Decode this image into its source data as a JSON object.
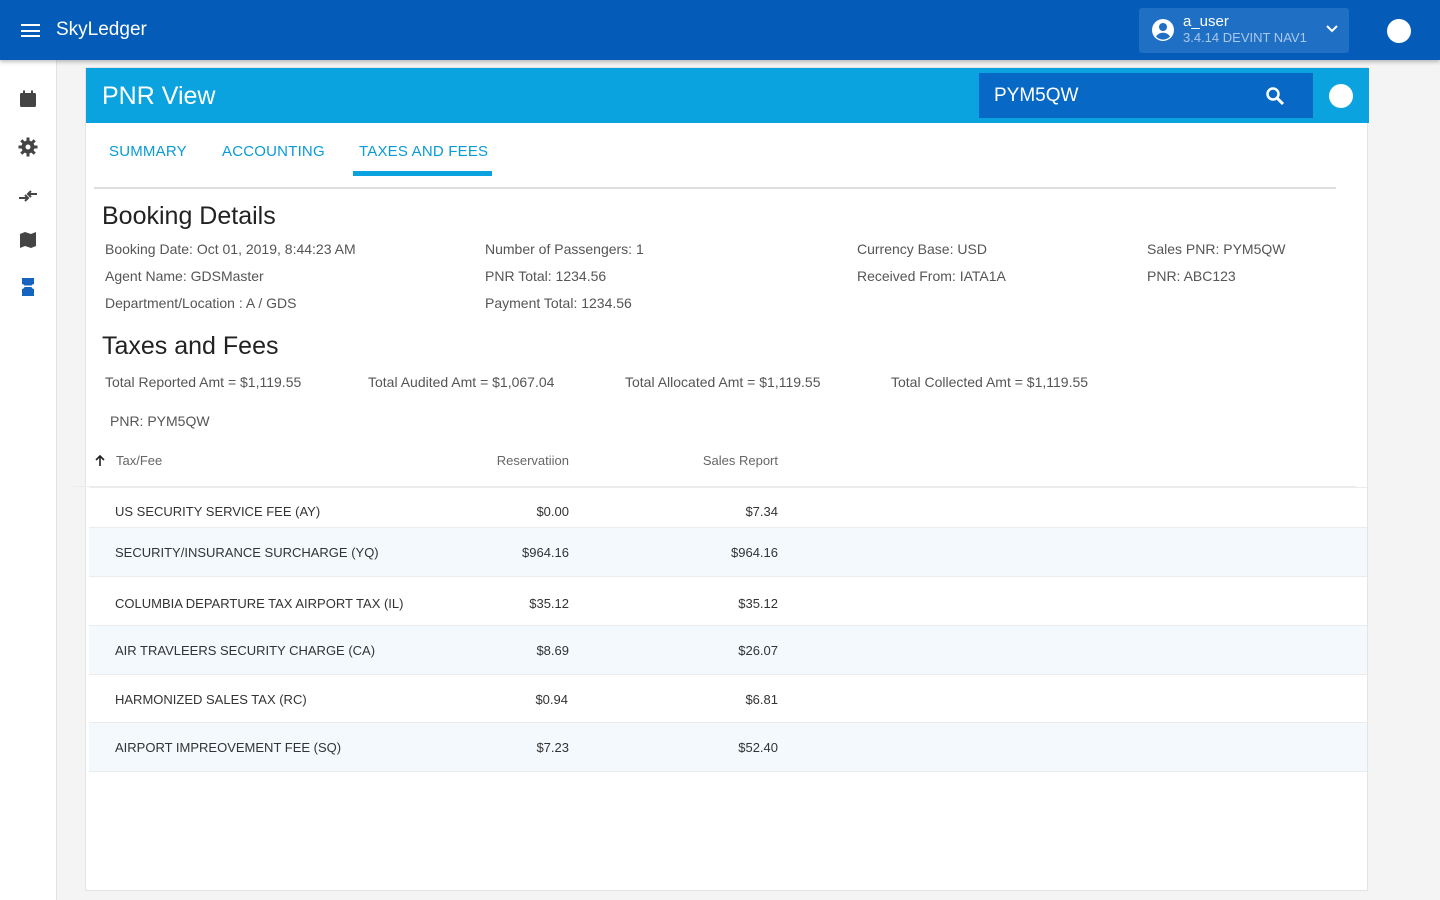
{
  "app": {
    "title": "SkyLedger"
  },
  "user": {
    "name": "a_user",
    "version": "3.4.14 DEVINT NAV1"
  },
  "page": {
    "title": "PNR View"
  },
  "search": {
    "value": "PYM5QW"
  },
  "tabs": [
    {
      "label": "SUMMARY"
    },
    {
      "label": "ACCOUNTING"
    },
    {
      "label": "TAXES AND FEES"
    }
  ],
  "active_tab": "TAXES AND FEES",
  "booking": {
    "title": "Booking Details",
    "booking_date": "Booking Date: Oct 01, 2019, 8:44:23 AM",
    "agent_name": "Agent Name: GDSMaster",
    "department": "Department/Location : A / GDS",
    "passengers": "Number of Passengers: 1",
    "pnr_total": "PNR Total: 1234.56",
    "payment_total": "Payment Total: 1234.56",
    "currency": "Currency Base: USD",
    "received_from": "Received From: IATA1A",
    "sales_pnr": "Sales PNR: PYM5QW",
    "pnr": "PNR: ABC123"
  },
  "taxes": {
    "title": "Taxes and Fees",
    "total_reported": "Total Reported Amt = $1,119.55",
    "total_audited": "Total Audited  Amt = $1,067.04",
    "total_allocated": "Total Allocated  Amt = $1,119.55",
    "total_collected": "Total Collected  Amt = $1,119.55",
    "pnr": "PNR: PYM5QW",
    "columns": {
      "name": "Tax/Fee",
      "reservation": "Reservatiion",
      "sales": "Sales Report"
    },
    "rows": [
      {
        "name": "US SECURITY SERVICE FEE (AY)",
        "reservation": "$0.00",
        "sales": "$7.34"
      },
      {
        "name": "SECURITY/INSURANCE SURCHARGE (YQ)",
        "reservation": "$964.16",
        "sales": "$964.16"
      },
      {
        "name": "COLUMBIA DEPARTURE TAX AIRPORT TAX (IL)",
        "reservation": "$35.12",
        "sales": "$35.12"
      },
      {
        "name": "AIR TRAVLEERS SECURITY CHARGE (CA)",
        "reservation": "$8.69",
        "sales": "$26.07"
      },
      {
        "name": "HARMONIZED SALES TAX (RC)",
        "reservation": "$0.94",
        "sales": "$6.81"
      },
      {
        "name": "AIRPORT IMPREOVEMENT FEE (SQ)",
        "reservation": "$7.23",
        "sales": "$52.40"
      }
    ]
  },
  "colors": {
    "appbar": "#055cb8",
    "header": "#0aa2df",
    "accent": "#0a9ad6"
  },
  "icons": [
    "menu-icon",
    "account-circle-icon",
    "chevron-down-icon",
    "calendar-icon",
    "gear-icon",
    "transfer-icon",
    "map-icon",
    "ticket-icon",
    "search-icon",
    "arrow-up-icon"
  ]
}
